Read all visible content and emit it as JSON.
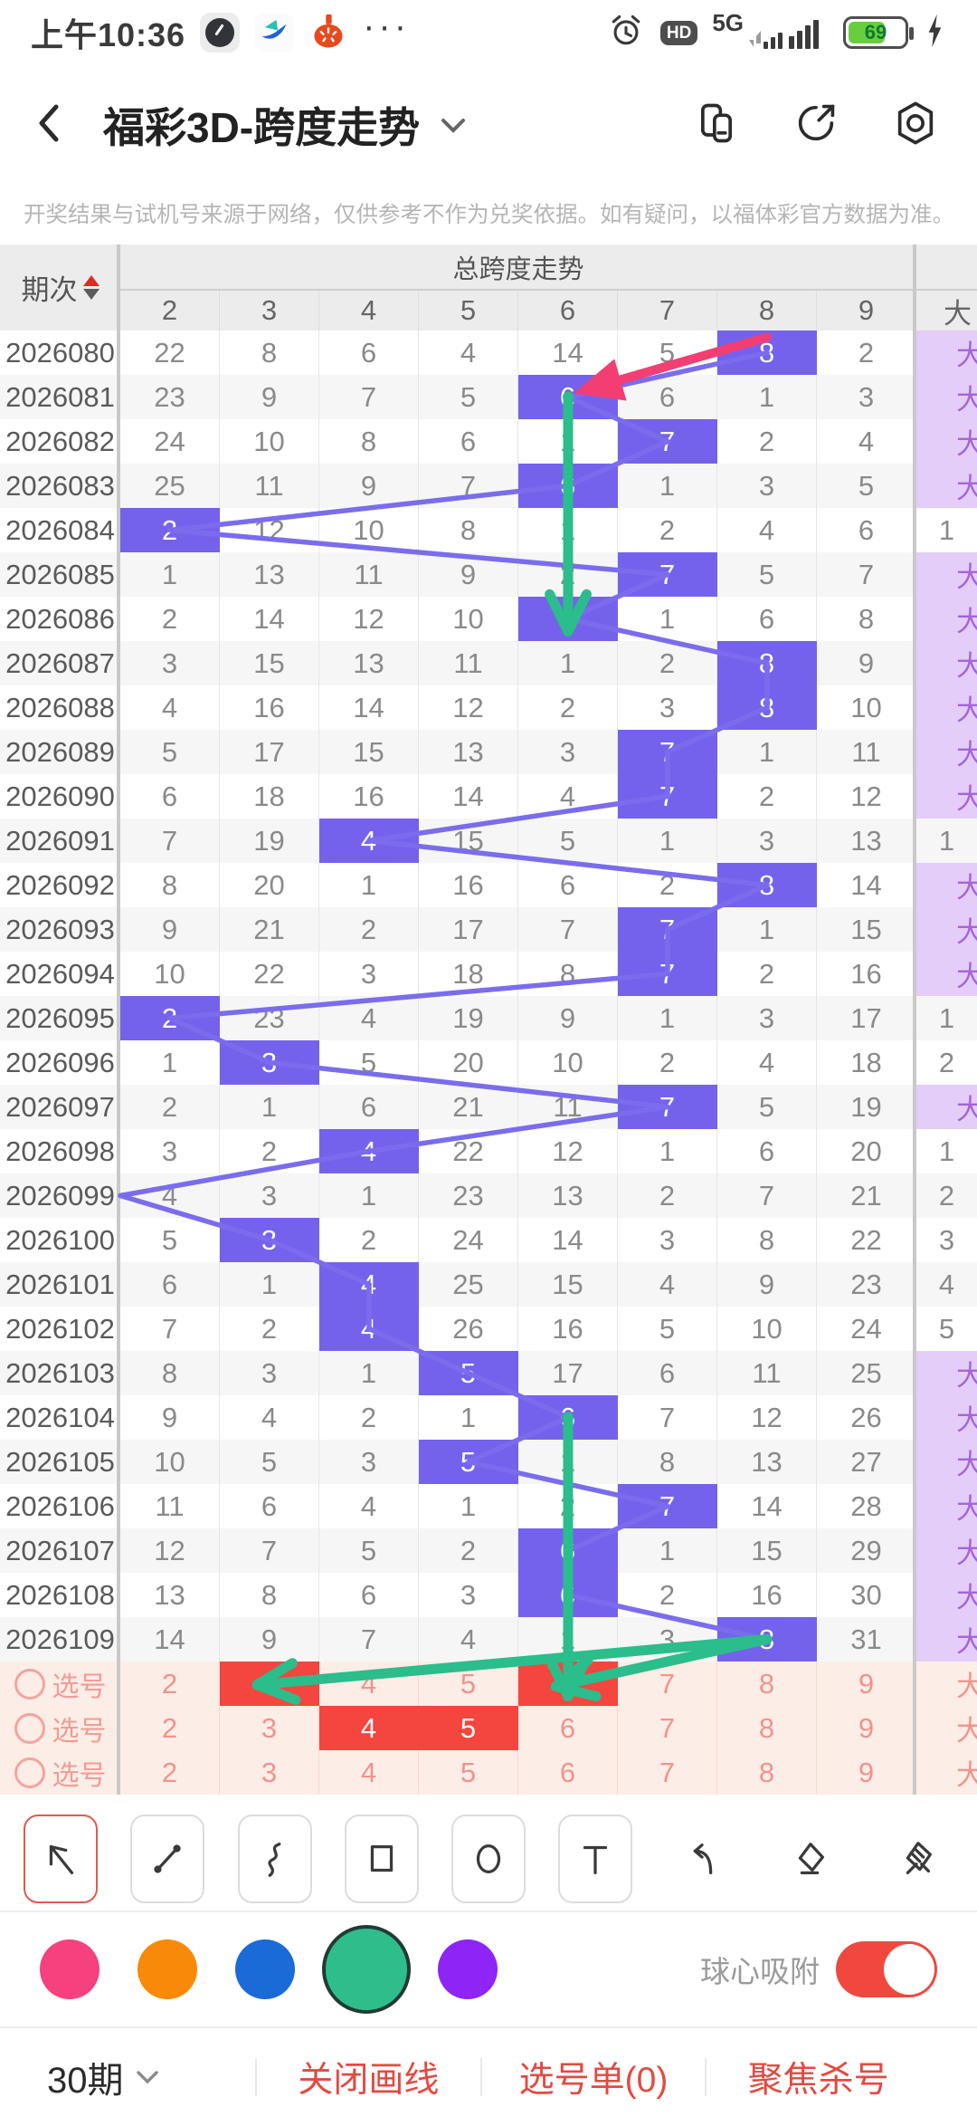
{
  "theme": {
    "highlight": "#7462EC",
    "trend_line": "#7b6cee",
    "lavender_bg": "#E4CDF8",
    "lavender_text": "#A565D8",
    "green_ink": "#2BBD8B",
    "pink_ink": "#F23E72",
    "select_red": "#F4453E",
    "pick_bg": "#FDEDE7"
  },
  "status_bar": {
    "time": "上午10:36",
    "network": "5G",
    "battery": "69"
  },
  "nav": {
    "title": "福彩3D-跨度走势"
  },
  "disclaimer": {
    "text": "开奖结果与试机号来源于网络，仅供参考不作为兑奖依据。如有疑问，以福体彩官方数据为准。"
  },
  "table": {
    "period_header": "期次",
    "group_header": "总跨度走势",
    "col_headers": [
      "2",
      "3",
      "4",
      "5",
      "6",
      "7",
      "8",
      "9"
    ],
    "right_col_header": "大",
    "rows": [
      {
        "period": "2026080",
        "values": [
          "22",
          "8",
          "6",
          "4",
          "14",
          "5",
          "8",
          "2"
        ],
        "highlight": 6,
        "right": "大"
      },
      {
        "period": "2026081",
        "values": [
          "23",
          "9",
          "7",
          "5",
          "6",
          "6",
          "1",
          "3"
        ],
        "highlight": 4,
        "right": "大"
      },
      {
        "period": "2026082",
        "values": [
          "24",
          "10",
          "8",
          "6",
          "1",
          "7",
          "2",
          "4"
        ],
        "highlight": 5,
        "right": "大"
      },
      {
        "period": "2026083",
        "values": [
          "25",
          "11",
          "9",
          "7",
          "6",
          "1",
          "3",
          "5"
        ],
        "highlight": 4,
        "right": "大"
      },
      {
        "period": "2026084",
        "values": [
          "2",
          "12",
          "10",
          "8",
          "1",
          "2",
          "4",
          "6"
        ],
        "highlight": 0,
        "right": "1"
      },
      {
        "period": "2026085",
        "values": [
          "1",
          "13",
          "11",
          "9",
          "2",
          "7",
          "5",
          "7"
        ],
        "highlight": 5,
        "right": "大"
      },
      {
        "period": "2026086",
        "values": [
          "2",
          "14",
          "12",
          "10",
          "6",
          "1",
          "6",
          "8"
        ],
        "highlight": 4,
        "right": "大"
      },
      {
        "period": "2026087",
        "values": [
          "3",
          "15",
          "13",
          "11",
          "1",
          "2",
          "8",
          "9"
        ],
        "highlight": 6,
        "right": "大"
      },
      {
        "period": "2026088",
        "values": [
          "4",
          "16",
          "14",
          "12",
          "2",
          "3",
          "8",
          "10"
        ],
        "highlight": 6,
        "right": "大"
      },
      {
        "period": "2026089",
        "values": [
          "5",
          "17",
          "15",
          "13",
          "3",
          "7",
          "1",
          "11"
        ],
        "highlight": 5,
        "right": "大"
      },
      {
        "period": "2026090",
        "values": [
          "6",
          "18",
          "16",
          "14",
          "4",
          "7",
          "2",
          "12"
        ],
        "highlight": 5,
        "right": "大"
      },
      {
        "period": "2026091",
        "values": [
          "7",
          "19",
          "4",
          "15",
          "5",
          "1",
          "3",
          "13"
        ],
        "highlight": 2,
        "right": "1"
      },
      {
        "period": "2026092",
        "values": [
          "8",
          "20",
          "1",
          "16",
          "6",
          "2",
          "8",
          "14"
        ],
        "highlight": 6,
        "right": "大"
      },
      {
        "period": "2026093",
        "values": [
          "9",
          "21",
          "2",
          "17",
          "7",
          "7",
          "1",
          "15"
        ],
        "highlight": 5,
        "right": "大"
      },
      {
        "period": "2026094",
        "values": [
          "10",
          "22",
          "3",
          "18",
          "8",
          "7",
          "2",
          "16"
        ],
        "highlight": 5,
        "right": "大"
      },
      {
        "period": "2026095",
        "values": [
          "2",
          "23",
          "4",
          "19",
          "9",
          "1",
          "3",
          "17"
        ],
        "highlight": 0,
        "right": "1"
      },
      {
        "period": "2026096",
        "values": [
          "1",
          "3",
          "5",
          "20",
          "10",
          "2",
          "4",
          "18"
        ],
        "highlight": 1,
        "right": "2"
      },
      {
        "period": "2026097",
        "values": [
          "2",
          "1",
          "6",
          "21",
          "11",
          "7",
          "5",
          "19"
        ],
        "highlight": 5,
        "right": "大"
      },
      {
        "period": "2026098",
        "values": [
          "3",
          "2",
          "4",
          "22",
          "12",
          "1",
          "6",
          "20"
        ],
        "highlight": 2,
        "right": "1"
      },
      {
        "period": "2026099",
        "values": [
          "4",
          "3",
          "1",
          "23",
          "13",
          "2",
          "7",
          "21"
        ],
        "highlight": null,
        "right": "2"
      },
      {
        "period": "2026100",
        "values": [
          "5",
          "3",
          "2",
          "24",
          "14",
          "3",
          "8",
          "22"
        ],
        "highlight": 1,
        "right": "3"
      },
      {
        "period": "2026101",
        "values": [
          "6",
          "1",
          "4",
          "25",
          "15",
          "4",
          "9",
          "23"
        ],
        "highlight": 2,
        "right": "4"
      },
      {
        "period": "2026102",
        "values": [
          "7",
          "2",
          "4",
          "26",
          "16",
          "5",
          "10",
          "24"
        ],
        "highlight": 2,
        "right": "5"
      },
      {
        "period": "2026103",
        "values": [
          "8",
          "3",
          "1",
          "5",
          "17",
          "6",
          "11",
          "25"
        ],
        "highlight": 3,
        "right": "大"
      },
      {
        "period": "2026104",
        "values": [
          "9",
          "4",
          "2",
          "1",
          "6",
          "7",
          "12",
          "26"
        ],
        "highlight": 4,
        "right": "大"
      },
      {
        "period": "2026105",
        "values": [
          "10",
          "5",
          "3",
          "5",
          "1",
          "8",
          "13",
          "27"
        ],
        "highlight": 3,
        "right": "大"
      },
      {
        "period": "2026106",
        "values": [
          "11",
          "6",
          "4",
          "1",
          "2",
          "7",
          "14",
          "28"
        ],
        "highlight": 5,
        "right": "大"
      },
      {
        "period": "2026107",
        "values": [
          "12",
          "7",
          "5",
          "2",
          "6",
          "1",
          "15",
          "29"
        ],
        "highlight": 4,
        "right": "大"
      },
      {
        "period": "2026108",
        "values": [
          "13",
          "8",
          "6",
          "3",
          "6",
          "2",
          "16",
          "30"
        ],
        "highlight": 4,
        "right": "大"
      },
      {
        "period": "2026109",
        "values": [
          "14",
          "9",
          "7",
          "4",
          "1",
          "3",
          "8",
          "31"
        ],
        "highlight": 6,
        "right": "大"
      }
    ],
    "pick_rows": [
      {
        "label": "选号",
        "values": [
          "2",
          "3",
          "4",
          "5",
          "6",
          "7",
          "8",
          "9"
        ],
        "selected": [
          1,
          4
        ],
        "right": "大"
      },
      {
        "label": "选号",
        "values": [
          "2",
          "3",
          "4",
          "5",
          "6",
          "7",
          "8",
          "9"
        ],
        "selected": [
          2,
          3
        ],
        "right": "大"
      },
      {
        "label": "选号",
        "values": [
          "2",
          "3",
          "4",
          "5",
          "6",
          "7",
          "8",
          "9"
        ],
        "selected": [],
        "right": "大"
      }
    ]
  },
  "annotations": {
    "pink_arrow": {
      "from": {
        "period": "2026080",
        "col": 8
      },
      "to": {
        "period": "2026081",
        "col": 6
      }
    },
    "green_arrows": [
      {
        "from": {
          "period": "2026081",
          "col": 6
        },
        "to": {
          "period": "2026086",
          "col": 6
        },
        "dot": true
      },
      {
        "from": {
          "period": "2026104",
          "col": 6
        },
        "to": {
          "pick_row": 0,
          "col": 6
        },
        "dot": true
      },
      {
        "from": {
          "period": "2026109",
          "col": 8
        },
        "to": {
          "pick_row": 0,
          "col": 3
        },
        "dot": false
      },
      {
        "from": {
          "period": "2026109",
          "col": 8
        },
        "to": {
          "pick_row": 0,
          "col": 6
        },
        "dot": false
      }
    ]
  },
  "toolbar": {
    "tools": [
      {
        "icon": "select-arrow",
        "boxed": true,
        "selected": true
      },
      {
        "icon": "line",
        "boxed": true,
        "selected": false
      },
      {
        "icon": "curve",
        "boxed": true,
        "selected": false
      },
      {
        "icon": "rectangle",
        "boxed": true,
        "selected": false
      },
      {
        "icon": "ellipse",
        "boxed": true,
        "selected": false
      },
      {
        "icon": "text",
        "boxed": true,
        "selected": false
      },
      {
        "icon": "undo",
        "boxed": false,
        "selected": false
      },
      {
        "icon": "eraser",
        "boxed": false,
        "selected": false
      },
      {
        "icon": "clear-eraser",
        "boxed": false,
        "selected": false
      }
    ]
  },
  "palette": {
    "colors": [
      "#F5417E",
      "#F98908",
      "#1A6BD8",
      "#2EBE8C",
      "#8E24F5"
    ],
    "selected_index": 3,
    "snap_label": "球心吸附",
    "snap_on": true
  },
  "bottom_bar": {
    "period_selector": "30期",
    "close_drawing": "关闭画线",
    "pick_list": "选号单(0)",
    "focus_kill": "聚焦杀号"
  }
}
